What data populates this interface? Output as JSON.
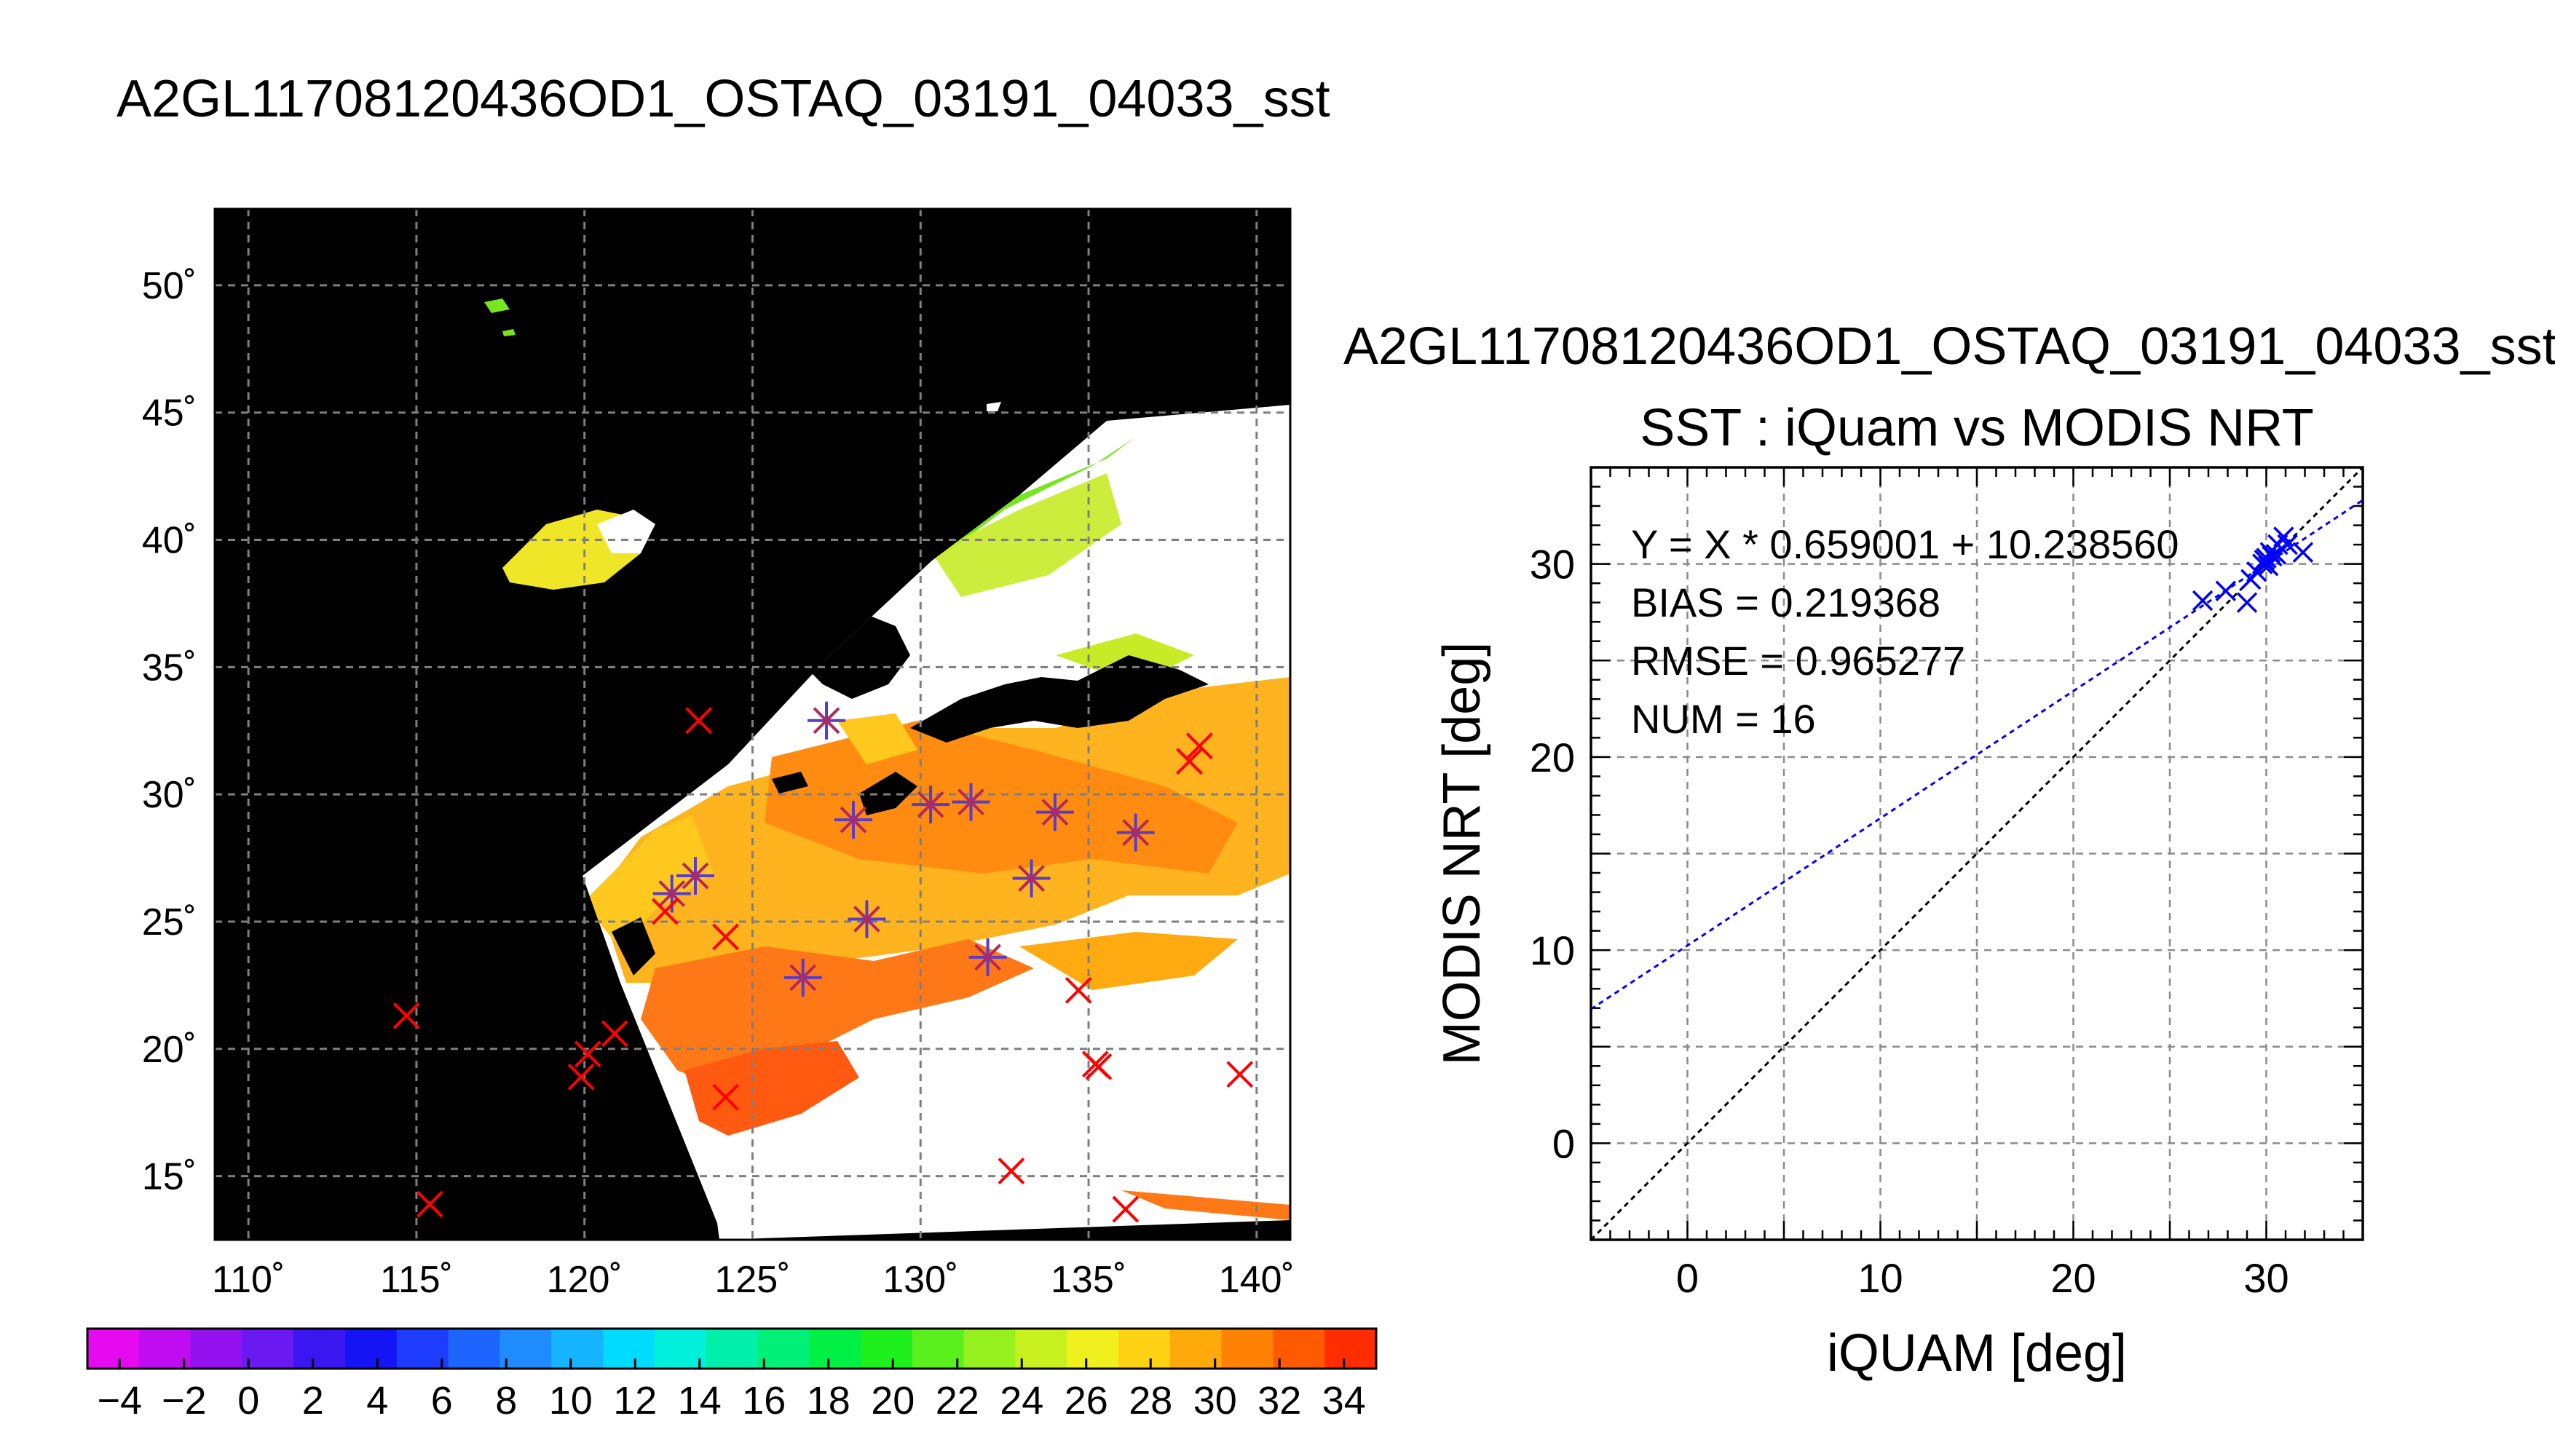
{
  "page_title": "A2GL11708120436OD1_OSTAQ_03191_04033_sst",
  "chart_data": [
    {
      "type": "map",
      "lon_ticks": [
        "110˚",
        "115˚",
        "120˚",
        "125˚",
        "130˚",
        "135˚",
        "140˚"
      ],
      "lat_ticks": [
        "50˚",
        "45˚",
        "40˚",
        "35˚",
        "30˚",
        "25˚",
        "20˚",
        "15˚"
      ],
      "lon_range": [
        109,
        141
      ],
      "lat_range": [
        12.5,
        53
      ],
      "grid": true,
      "background_color": "#000000",
      "cloud_color": "#ffffff",
      "matchups_star": [
        [
          127.2,
          32.9
        ],
        [
          128.0,
          29.0
        ],
        [
          130.3,
          29.6
        ],
        [
          131.5,
          29.7
        ],
        [
          134.0,
          29.3
        ],
        [
          136.4,
          28.5
        ],
        [
          123.3,
          26.8
        ],
        [
          122.6,
          26.1
        ],
        [
          128.4,
          25.1
        ],
        [
          133.3,
          26.7
        ],
        [
          132.0,
          23.6
        ],
        [
          126.5,
          22.8
        ]
      ],
      "matchups_x_only": [
        [
          123.4,
          32.9
        ],
        [
          138.0,
          31.3
        ],
        [
          138.3,
          31.9
        ],
        [
          122.4,
          25.4
        ],
        [
          124.2,
          24.4
        ],
        [
          114.7,
          21.3
        ],
        [
          120.9,
          20.6
        ],
        [
          120.1,
          19.8
        ],
        [
          119.9,
          18.9
        ],
        [
          135.2,
          19.4
        ],
        [
          135.3,
          19.3
        ],
        [
          139.5,
          19.0
        ],
        [
          124.2,
          18.1
        ],
        [
          134.7,
          22.3
        ],
        [
          132.7,
          15.2
        ],
        [
          115.4,
          13.9
        ],
        [
          136.1,
          13.7
        ]
      ]
    },
    {
      "type": "colorbar",
      "tick_labels": [
        "−4",
        "−2",
        "0",
        "2",
        "4",
        "6",
        "8",
        "10",
        "12",
        "14",
        "16",
        "18",
        "20",
        "22",
        "24",
        "26",
        "28",
        "30",
        "32",
        "34"
      ],
      "range": [
        -5,
        35
      ],
      "colors": [
        "#e60af0",
        "#c00cf0",
        "#9512f0",
        "#6a1af0",
        "#3a16f0",
        "#1414f5",
        "#1e3cff",
        "#1e64ff",
        "#1e8cff",
        "#14b4ff",
        "#00dcff",
        "#00f0dc",
        "#00f0aa",
        "#00f078",
        "#00f046",
        "#1ef01e",
        "#5af01e",
        "#96f01e",
        "#c8f01e",
        "#f0f01e",
        "#ffd214",
        "#ffaa0a",
        "#ff8205",
        "#ff5a00",
        "#ff2d00"
      ]
    },
    {
      "type": "scatter",
      "file_title": "A2GL11708120436OD1_OSTAQ_03191_04033_sst",
      "title": "SST : iQuam vs MODIS NRT",
      "xlabel": "iQUAM [deg]",
      "ylabel": "MODIS NRT [deg]",
      "xlim": [
        -5,
        35
      ],
      "ylim": [
        -5,
        35
      ],
      "x_ticks": [
        "0",
        "10",
        "20",
        "30"
      ],
      "y_ticks": [
        "0",
        "10",
        "20",
        "30"
      ],
      "grid": true,
      "annotations": [
        "Y = X * 0.659001 + 10.238560",
        "BIAS = 0.219368",
        "RMSE = 0.965277",
        "NUM = 16"
      ],
      "fit": {
        "slope": 0.659001,
        "intercept": 10.23856,
        "color": "#0000ff"
      },
      "one_to_one_color": "#000000",
      "point_color": "#0000ff",
      "points": [
        [
          26.7,
          28.1
        ],
        [
          27.9,
          28.6
        ],
        [
          29.0,
          28.0
        ],
        [
          29.2,
          29.2
        ],
        [
          29.5,
          29.6
        ],
        [
          29.8,
          30.0
        ],
        [
          30.0,
          30.3
        ],
        [
          30.2,
          30.6
        ],
        [
          30.1,
          29.9
        ],
        [
          29.9,
          30.2
        ],
        [
          30.3,
          30.4
        ],
        [
          30.6,
          31.0
        ],
        [
          30.5,
          30.5
        ],
        [
          30.9,
          31.4
        ],
        [
          31.1,
          31.0
        ],
        [
          31.9,
          30.6
        ]
      ]
    }
  ]
}
